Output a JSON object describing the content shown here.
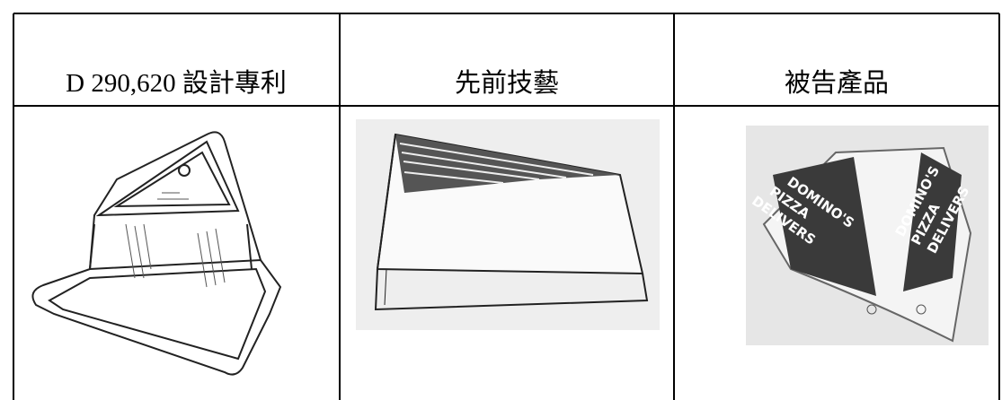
{
  "table": {
    "header": [
      "D 290,620  設計專利",
      "先前技藝",
      "被告產品"
    ]
  },
  "product_sign": [
    "DOMINO'S",
    "PIZZA",
    "DELIVERS"
  ]
}
